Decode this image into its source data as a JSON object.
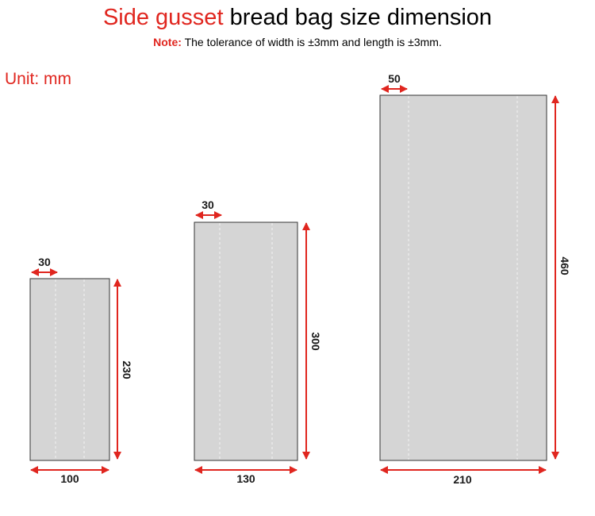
{
  "title": {
    "accent": "Side gusset",
    "rest": "bread bag size dimension"
  },
  "note": {
    "label": "Note:",
    "text": "The tolerance of width is  ±3mm and length is ±3mm."
  },
  "unit_label": "Unit: mm",
  "bags": [
    {
      "gusset": "30",
      "width": "100",
      "length": "230"
    },
    {
      "gusset": "30",
      "width": "130",
      "length": "300"
    },
    {
      "gusset": "50",
      "width": "210",
      "length": "460"
    }
  ],
  "colors": {
    "accent": "#e0261f",
    "bag_fill": "#d5d5d5",
    "bag_stroke": "#333333",
    "fold_line": "#f2f2f2"
  }
}
